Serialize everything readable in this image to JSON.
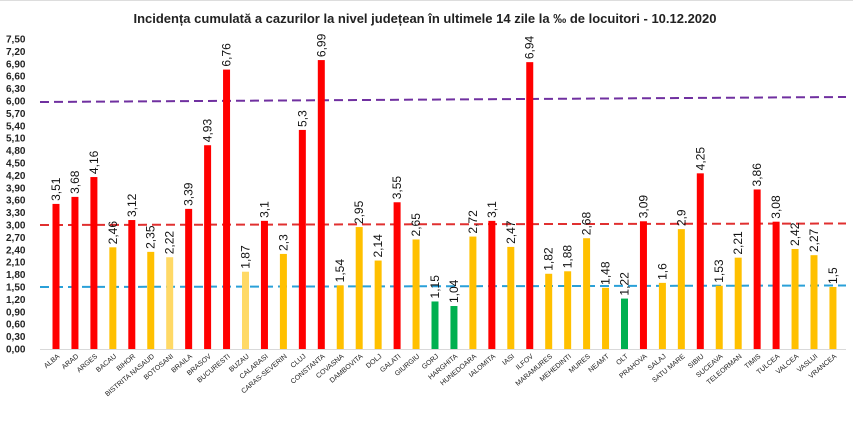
{
  "chart_data": {
    "type": "bar",
    "title": "Incidența cumulată a cazurilor la nivel județean în ultimele 14 zile la ‰ de locuitori - 10.12.2020",
    "xlabel": "",
    "ylabel": "",
    "ylim": [
      0,
      7.5
    ],
    "ytick_step": 0.3,
    "ytick_labels": [
      "0,00",
      "0,30",
      "0,60",
      "0,90",
      "1,20",
      "1,50",
      "1,80",
      "2,10",
      "2,40",
      "2,70",
      "3,00",
      "3,30",
      "3,60",
      "3,90",
      "4,20",
      "4,50",
      "4,80",
      "5,10",
      "5,40",
      "5,70",
      "6,00",
      "6,30",
      "6,60",
      "6,90",
      "7,20",
      "7,50"
    ],
    "grid": false,
    "legend": "none",
    "categories": [
      "ALBA",
      "ARAD",
      "ARGES",
      "BACAU",
      "BIHOR",
      "BISTRITA NASAUD",
      "BOTOSANI",
      "BRAILA",
      "BRASOV",
      "BUCURESTI",
      "BUZAU",
      "CALARASI",
      "CARAS-SEVERIN",
      "CLUJ",
      "CONSTANTA",
      "COVASNA",
      "DAMBOVITA",
      "DOLJ",
      "GALATI",
      "GIURGIU",
      "GORJ",
      "HARGHITA",
      "HUNEDOARA",
      "IALOMITA",
      "IASI",
      "ILFOV",
      "MARAMURES",
      "MEHEDINTI",
      "MURES",
      "NEAMT",
      "OLT",
      "PRAHOVA",
      "SALAJ",
      "SATU MARE",
      "SIBIU",
      "SUCEAVA",
      "TELEORMAN",
      "TIMIS",
      "TULCEA",
      "VALCEA",
      "VASLUI",
      "VRANCEA"
    ],
    "values": [
      3.51,
      3.68,
      4.16,
      2.46,
      3.12,
      2.35,
      2.22,
      3.39,
      4.93,
      6.76,
      1.87,
      3.1,
      2.3,
      5.3,
      6.99,
      1.54,
      2.95,
      2.14,
      3.55,
      2.65,
      1.15,
      1.04,
      2.72,
      3.1,
      2.47,
      6.94,
      1.82,
      1.88,
      2.68,
      1.48,
      1.22,
      3.09,
      1.6,
      2.9,
      4.25,
      1.53,
      2.21,
      3.86,
      3.08,
      2.42,
      2.27,
      1.5
    ],
    "value_labels": [
      "3,51",
      "3,68",
      "4,16",
      "2,46",
      "3,12",
      "2,35",
      "2,22",
      "3,39",
      "4,93",
      "6,76",
      "1,87",
      "3,1",
      "2,3",
      "5,3",
      "6,99",
      "1,54",
      "2,95",
      "2,14",
      "3,55",
      "2,65",
      "1,15",
      "1,04",
      "2,72",
      "3,1",
      "2,47",
      "6,94",
      "1,82",
      "1,88",
      "2,68",
      "1,48",
      "1,22",
      "3,09",
      "1,6",
      "2,9",
      "4,25",
      "1,53",
      "2,21",
      "3,86",
      "3,08",
      "2,42",
      "2,27",
      "1,5"
    ],
    "bar_colors": [
      "#ff0000",
      "#ff0000",
      "#ff0000",
      "#ffc000",
      "#ff0000",
      "#ffc000",
      "#ffd966",
      "#ff0000",
      "#ff0000",
      "#ff0000",
      "#ffd966",
      "#ff0000",
      "#ffc000",
      "#ff0000",
      "#ff0000",
      "#ffc000",
      "#ffc000",
      "#ffc000",
      "#ff0000",
      "#ffc000",
      "#00b050",
      "#00b050",
      "#ffc000",
      "#ff0000",
      "#ffc000",
      "#ff0000",
      "#ffc000",
      "#ffc000",
      "#ffc000",
      "#ffc000",
      "#00b050",
      "#ff0000",
      "#ffc000",
      "#ffc000",
      "#ff0000",
      "#ffc000",
      "#ffc000",
      "#ff0000",
      "#ff0000",
      "#ffc000",
      "#ffc000",
      "#ffc000"
    ],
    "reference_lines": [
      {
        "value": 6.0,
        "color": "#7030a0",
        "style": "dashed"
      },
      {
        "value": 3.0,
        "color": "#e03030",
        "style": "dashed"
      },
      {
        "value": 1.5,
        "color": "#2aa0d8",
        "style": "dashed"
      }
    ]
  }
}
